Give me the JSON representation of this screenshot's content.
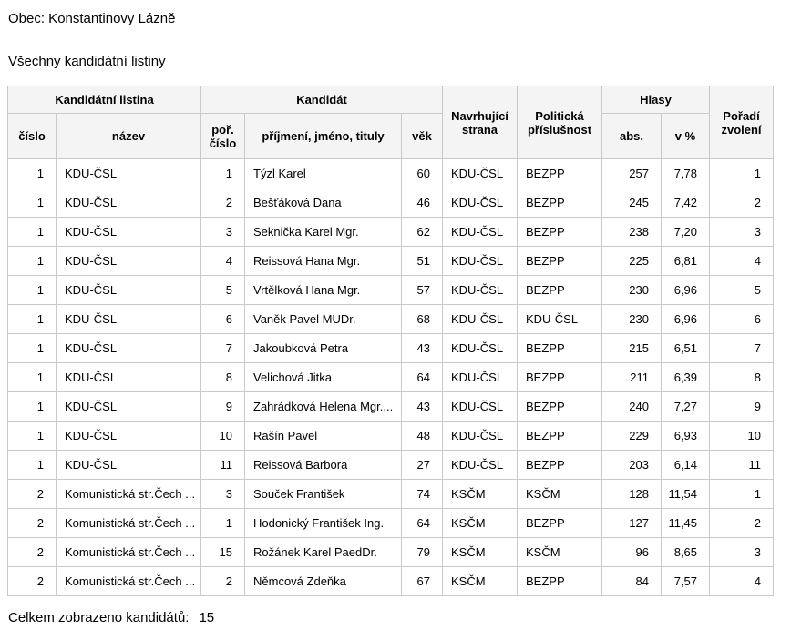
{
  "page": {
    "title": "Obec: Konstantinovy Lázně",
    "subtitle": "Všechny kandidátní listiny",
    "footer_label": "Celkem zobrazeno kandidátů:",
    "footer_value": "15"
  },
  "table": {
    "group_headers": {
      "kandidatni_listina": "Kandidátní listina",
      "kandidat": "Kandidát",
      "navrhujici_strana": "Navrhující strana",
      "politicka_prislusnost": "Politická příslušnost",
      "hlasy": "Hlasy",
      "poradi_zvoleni": "Pořadí zvolení"
    },
    "sub_headers": {
      "cislo": "číslo",
      "nazev": "název",
      "por_cislo": "poř. číslo",
      "prijmeni": "příjmení, jméno, tituly",
      "vek": "věk",
      "abs": "abs.",
      "v_pct": "v %"
    },
    "rows": [
      [
        "1",
        "KDU-ČSL",
        "1",
        "Týzl Karel",
        "60",
        "KDU-ČSL",
        "BEZPP",
        "257",
        "7,78",
        "1"
      ],
      [
        "1",
        "KDU-ČSL",
        "2",
        "Bešťáková Dana",
        "46",
        "KDU-ČSL",
        "BEZPP",
        "245",
        "7,42",
        "2"
      ],
      [
        "1",
        "KDU-ČSL",
        "3",
        "Seknička Karel Mgr.",
        "62",
        "KDU-ČSL",
        "BEZPP",
        "238",
        "7,20",
        "3"
      ],
      [
        "1",
        "KDU-ČSL",
        "4",
        "Reissová Hana Mgr.",
        "51",
        "KDU-ČSL",
        "BEZPP",
        "225",
        "6,81",
        "4"
      ],
      [
        "1",
        "KDU-ČSL",
        "5",
        "Vrtělková Hana Mgr.",
        "57",
        "KDU-ČSL",
        "BEZPP",
        "230",
        "6,96",
        "5"
      ],
      [
        "1",
        "KDU-ČSL",
        "6",
        "Vaněk Pavel MUDr.",
        "68",
        "KDU-ČSL",
        "KDU-ČSL",
        "230",
        "6,96",
        "6"
      ],
      [
        "1",
        "KDU-ČSL",
        "7",
        "Jakoubková Petra",
        "43",
        "KDU-ČSL",
        "BEZPP",
        "215",
        "6,51",
        "7"
      ],
      [
        "1",
        "KDU-ČSL",
        "8",
        "Velichová Jitka",
        "64",
        "KDU-ČSL",
        "BEZPP",
        "211",
        "6,39",
        "8"
      ],
      [
        "1",
        "KDU-ČSL",
        "9",
        "Zahrádková Helena Mgr....",
        "43",
        "KDU-ČSL",
        "BEZPP",
        "240",
        "7,27",
        "9"
      ],
      [
        "1",
        "KDU-ČSL",
        "10",
        "Rašín Pavel",
        "48",
        "KDU-ČSL",
        "BEZPP",
        "229",
        "6,93",
        "10"
      ],
      [
        "1",
        "KDU-ČSL",
        "11",
        "Reissová Barbora",
        "27",
        "KDU-ČSL",
        "BEZPP",
        "203",
        "6,14",
        "11"
      ],
      [
        "2",
        "Komunistická str.Čech ...",
        "3",
        "Souček František",
        "74",
        "KSČM",
        "KSČM",
        "128",
        "11,54",
        "1"
      ],
      [
        "2",
        "Komunistická str.Čech ...",
        "1",
        "Hodonický František Ing.",
        "64",
        "KSČM",
        "BEZPP",
        "127",
        "11,45",
        "2"
      ],
      [
        "2",
        "Komunistická str.Čech ...",
        "15",
        "Rožánek Karel PaedDr.",
        "79",
        "KSČM",
        "KSČM",
        "96",
        "8,65",
        "3"
      ],
      [
        "2",
        "Komunistická str.Čech ...",
        "2",
        "Němcová Zdeňka",
        "67",
        "KSČM",
        "BEZPP",
        "84",
        "7,57",
        "4"
      ]
    ]
  },
  "colors": {
    "header_bg": "#f4f4f4",
    "border": "#c9c9c9",
    "text": "#000000",
    "background": "#ffffff"
  }
}
